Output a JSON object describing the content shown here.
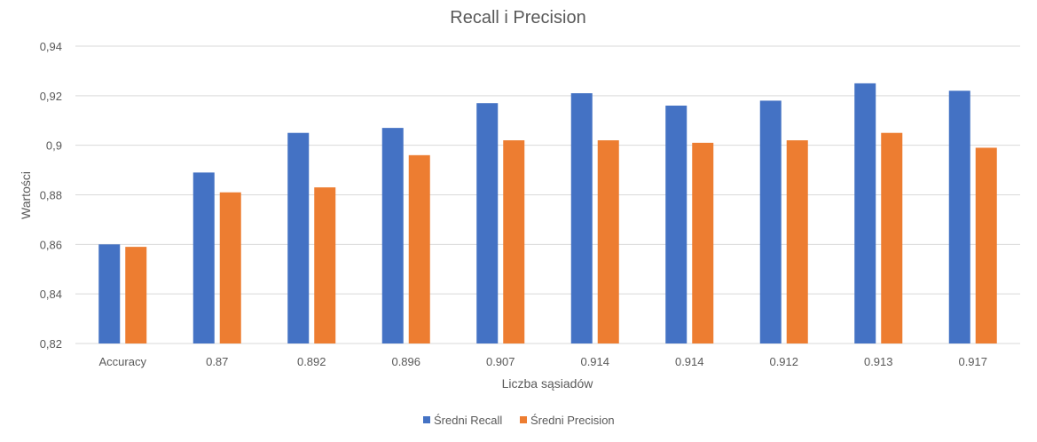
{
  "chart_data": {
    "type": "bar",
    "title": "Recall i Precision",
    "xlabel": "Liczba sąsiadów",
    "ylabel": "Wartości",
    "categories": [
      "Accuracy",
      "0.87",
      "0.892",
      "0.896",
      "0.907",
      "0.914",
      "0.914",
      "0.912",
      "0.913",
      "0.917"
    ],
    "series": [
      {
        "name": "Średni Recall",
        "color": "#4472C4",
        "values": [
          0.86,
          0.889,
          0.905,
          0.907,
          0.917,
          0.921,
          0.916,
          0.918,
          0.925,
          0.922
        ]
      },
      {
        "name": "Średni Precision",
        "color": "#ED7D31",
        "values": [
          0.859,
          0.881,
          0.883,
          0.896,
          0.902,
          0.902,
          0.901,
          0.902,
          0.905,
          0.899
        ]
      }
    ],
    "ylim": [
      0.82,
      0.94
    ],
    "yticks": [
      "0,82",
      "0,84",
      "0,86",
      "0,88",
      "0,9",
      "0,92",
      "0,94"
    ],
    "grid": true,
    "legend_position": "bottom"
  }
}
